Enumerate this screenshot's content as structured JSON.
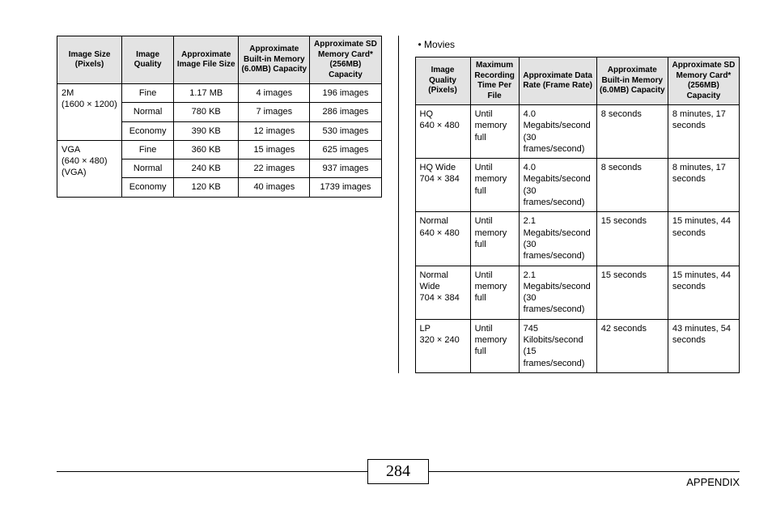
{
  "page_number": "284",
  "footer_label": "APPENDIX",
  "movies_label": "•  Movies",
  "left_table": {
    "headers": [
      "Image Size (Pixels)",
      "Image Quality",
      "Approximate Image File Size",
      "Approximate Built-in Memory (6.0MB) Capacity",
      "Approximate SD Memory Card* (256MB) Capacity"
    ],
    "groups": [
      {
        "size": "2M\n(1600 × 1200)",
        "rows": [
          {
            "q": "Fine",
            "file": "1.17 MB",
            "builtin": "4 images",
            "sd": "196 images"
          },
          {
            "q": "Normal",
            "file": "780 KB",
            "builtin": "7 images",
            "sd": "286 images"
          },
          {
            "q": "Economy",
            "file": "390 KB",
            "builtin": "12 images",
            "sd": "530 images"
          }
        ]
      },
      {
        "size": "VGA\n(640 × 480)\n(VGA)",
        "rows": [
          {
            "q": "Fine",
            "file": "360 KB",
            "builtin": "15 images",
            "sd": "625 images"
          },
          {
            "q": "Normal",
            "file": "240 KB",
            "builtin": "22 images",
            "sd": "937 images"
          },
          {
            "q": "Economy",
            "file": "120 KB",
            "builtin": "40 images",
            "sd": "1739 images"
          }
        ]
      }
    ]
  },
  "right_table": {
    "headers": [
      "Image Quality (Pixels)",
      "Maximum Recording Time Per File",
      "Approximate Data Rate (Frame Rate)",
      "Approximate Built-in Memory (6.0MB) Capacity",
      "Approximate SD Memory Card* (256MB) Capacity"
    ],
    "rows": [
      {
        "q": "HQ\n640 × 480",
        "rec": "Until memory full",
        "rate": "4.0 Megabits/second (30 frames/second)",
        "builtin": "8 seconds",
        "sd": "8 minutes, 17 seconds"
      },
      {
        "q": "HQ Wide\n704 × 384",
        "rec": "Until memory full",
        "rate": "4.0 Megabits/second (30 frames/second)",
        "builtin": "8 seconds",
        "sd": "8 minutes, 17 seconds"
      },
      {
        "q": "Normal\n640 × 480",
        "rec": "Until memory full",
        "rate": "2.1 Megabits/second (30 frames/second)",
        "builtin": "15 seconds",
        "sd": "15 minutes, 44 seconds"
      },
      {
        "q": "Normal Wide\n704 × 384",
        "rec": "Until memory full",
        "rate": "2.1 Megabits/second (30 frames/second)",
        "builtin": "15 seconds",
        "sd": "15 minutes, 44 seconds"
      },
      {
        "q": "LP\n320 × 240",
        "rec": "Until memory full",
        "rate": "745 Kilobits/second (15 frames/second)",
        "builtin": "42 seconds",
        "sd": "43 minutes, 54 seconds"
      }
    ]
  }
}
